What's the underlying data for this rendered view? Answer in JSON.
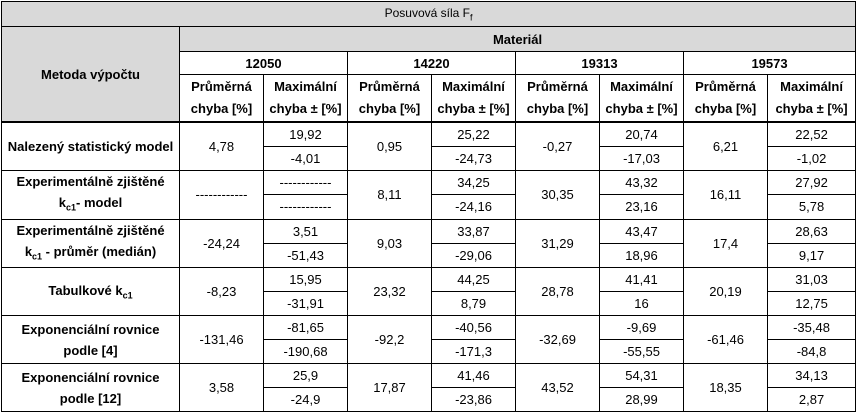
{
  "title": "Posuvová síla F",
  "title_sub": "f",
  "method_header": "Metoda výpočtu",
  "material_header": "Materiál",
  "materials": [
    "12050",
    "14220",
    "19313",
    "19573"
  ],
  "col_avg": "Průměrná chyba [%]",
  "col_max": "Maximální chyba ± [%]",
  "rows": [
    {
      "label": "Nalezený statistický model",
      "cells": [
        {
          "avg": "4,78",
          "max_pos": "19,92",
          "max_neg": "-4,01"
        },
        {
          "avg": "0,95",
          "max_pos": "25,22",
          "max_neg": "-24,73"
        },
        {
          "avg": "-0,27",
          "max_pos": "20,74",
          "max_neg": "-17,03"
        },
        {
          "avg": "6,21",
          "max_pos": "22,52",
          "max_neg": "-1,02"
        }
      ]
    },
    {
      "label_a": "Experimentálně zjištěné",
      "label_b": "k",
      "label_b_sub": "c1",
      "label_c": "- model",
      "cells": [
        {
          "avg": "------------",
          "max_pos": "------------",
          "max_neg": "------------"
        },
        {
          "avg": "8,11",
          "max_pos": "34,25",
          "max_neg": "-24,16"
        },
        {
          "avg": "30,35",
          "max_pos": "43,32",
          "max_neg": "23,16"
        },
        {
          "avg": "16,11",
          "max_pos": "27,92",
          "max_neg": "5,78"
        }
      ]
    },
    {
      "label_a": "Experimentálně zjištěné",
      "label_b": "k",
      "label_b_sub": "c1",
      "label_c": " - průměr (medián)",
      "cells": [
        {
          "avg": "-24,24",
          "max_pos": "3,51",
          "max_neg": "-51,43"
        },
        {
          "avg": "9,03",
          "max_pos": "33,87",
          "max_neg": "-29,06"
        },
        {
          "avg": "31,29",
          "max_pos": "43,47",
          "max_neg": "18,96"
        },
        {
          "avg": "17,4",
          "max_pos": "28,63",
          "max_neg": "9,17"
        }
      ]
    },
    {
      "label_a": "Tabulkové  k",
      "label_sub": "c1",
      "cells": [
        {
          "avg": "-8,23",
          "max_pos": "15,95",
          "max_neg": "-31,91"
        },
        {
          "avg": "23,32",
          "max_pos": "44,25",
          "max_neg": "8,79"
        },
        {
          "avg": "28,78",
          "max_pos": "41,41",
          "max_neg": "16"
        },
        {
          "avg": "20,19",
          "max_pos": "31,03",
          "max_neg": "12,75"
        }
      ]
    },
    {
      "label": "Exponenciální rovnice podle [4]",
      "cells": [
        {
          "avg": "-131,46",
          "max_pos": "-81,65",
          "max_neg": "-190,68"
        },
        {
          "avg": "-92,2",
          "max_pos": "-40,56",
          "max_neg": "-171,3"
        },
        {
          "avg": "-32,69",
          "max_pos": "-9,69",
          "max_neg": "-55,55"
        },
        {
          "avg": "-61,46",
          "max_pos": "-35,48",
          "max_neg": "-84,8"
        }
      ]
    },
    {
      "label": "Exponenciální rovnice podle [12]",
      "cells": [
        {
          "avg": "3,58",
          "max_pos": "25,9",
          "max_neg": "-24,9"
        },
        {
          "avg": "17,87",
          "max_pos": "41,46",
          "max_neg": "-23,86"
        },
        {
          "avg": "43,52",
          "max_pos": "54,31",
          "max_neg": "28,99"
        },
        {
          "avg": "18,35",
          "max_pos": "34,13",
          "max_neg": "2,87"
        }
      ]
    }
  ]
}
